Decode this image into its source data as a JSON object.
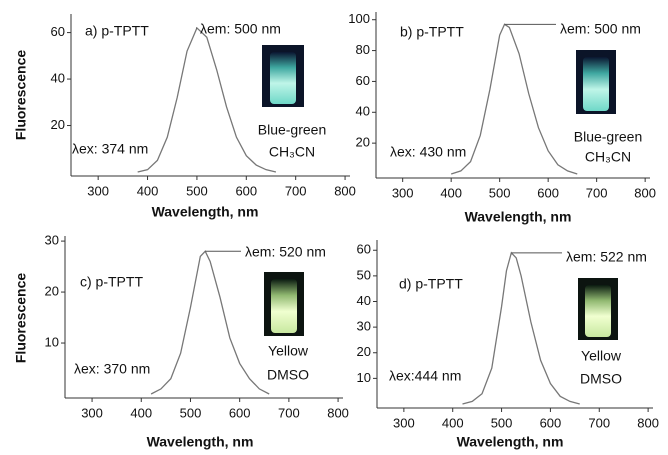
{
  "chart_data": [
    {
      "type": "line",
      "title": "a) p-TPTT",
      "emission_label": "λem: 500 nm",
      "excitation_label": "λex: 374 nm",
      "color_name": "Blue-green",
      "solvent": "CH₃CN",
      "x_label": "Wavelength, nm",
      "y_label": "Fluorescence",
      "x": [
        380,
        400,
        420,
        440,
        460,
        480,
        500,
        520,
        540,
        560,
        580,
        600,
        620,
        640,
        660
      ],
      "values": [
        0,
        1,
        5,
        15,
        32,
        52,
        62,
        58,
        44,
        28,
        15,
        7,
        3,
        1,
        0
      ],
      "xlim": [
        245,
        810
      ],
      "ylim": [
        0,
        68
      ],
      "xticks": [
        300,
        400,
        500,
        600,
        700,
        800
      ],
      "yticks": [
        20,
        40,
        60
      ],
      "color": "#777777"
    },
    {
      "type": "line",
      "title": "b) p-TPTT",
      "emission_label": "λem: 500 nm",
      "excitation_label": "λex: 430 nm",
      "color_name": "Blue-green",
      "solvent": "CH₃CN",
      "x_label": "Wavelength, nm",
      "x": [
        400,
        420,
        440,
        460,
        480,
        500,
        510,
        520,
        540,
        560,
        580,
        600,
        620,
        640,
        660
      ],
      "values": [
        0,
        2,
        8,
        25,
        55,
        90,
        97,
        95,
        78,
        52,
        30,
        15,
        6,
        2,
        0
      ],
      "xlim": [
        245,
        810
      ],
      "ylim": [
        0,
        105
      ],
      "xticks": [
        300,
        400,
        500,
        600,
        700,
        800
      ],
      "yticks": [
        20,
        40,
        60,
        80,
        100
      ],
      "color": "#777777"
    },
    {
      "type": "line",
      "title": "c) p-TPTT",
      "emission_label": "λem: 520 nm",
      "excitation_label": "λex: 370 nm",
      "color_name": "Yellow",
      "solvent": "DMSO",
      "x_label": "Wavelength, nm",
      "y_label": "Fluorescence",
      "x": [
        420,
        440,
        460,
        480,
        500,
        520,
        530,
        540,
        560,
        580,
        600,
        620,
        640,
        660
      ],
      "values": [
        0,
        1,
        3,
        8,
        17,
        27,
        28,
        26,
        19,
        11,
        6,
        3,
        1,
        0
      ],
      "xlim": [
        245,
        810
      ],
      "ylim": [
        0,
        31
      ],
      "xticks": [
        300,
        400,
        500,
        600,
        700,
        800
      ],
      "yticks": [
        10,
        20,
        30
      ],
      "color": "#777777"
    },
    {
      "type": "line",
      "title": "d) p-TPTT",
      "emission_label": "λem: 522 nm",
      "excitation_label": "λex:444 nm",
      "color_name": "Yellow",
      "solvent": "DMSO",
      "x_label": "Wavelength, nm",
      "x": [
        420,
        440,
        460,
        480,
        500,
        510,
        520,
        530,
        540,
        560,
        580,
        600,
        620,
        640,
        660
      ],
      "values": [
        0,
        1,
        4,
        14,
        38,
        52,
        59,
        57,
        50,
        32,
        17,
        8,
        3,
        1,
        0
      ],
      "xlim": [
        245,
        810
      ],
      "ylim": [
        0,
        64
      ],
      "xticks": [
        300,
        400,
        500,
        600,
        700,
        800
      ],
      "yticks": [
        10,
        20,
        30,
        40,
        50,
        60
      ],
      "color": "#777777"
    }
  ]
}
